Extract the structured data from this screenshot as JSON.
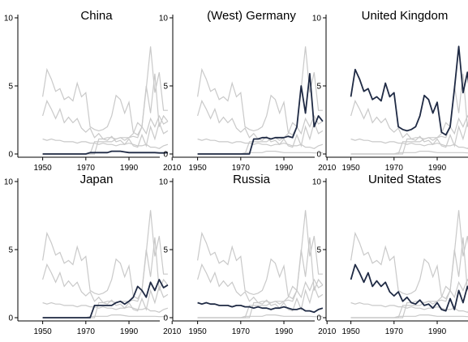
{
  "chart_data": {
    "type": "line",
    "layout": "small-multiples 3x2",
    "xlim": [
      1943,
      2013
    ],
    "ylim": [
      0,
      10
    ],
    "xticks": [
      "1950",
      "1970",
      "1990",
      "2010"
    ],
    "yticks": [
      "0",
      "5",
      "10"
    ],
    "colors": {
      "highlight": "#1f2a44",
      "background": "#c9c9c9",
      "axis": "#000000"
    },
    "grid": false,
    "legend": "none",
    "x": [
      1950,
      1952,
      1954,
      1956,
      1958,
      1960,
      1962,
      1964,
      1966,
      1968,
      1970,
      1972,
      1974,
      1976,
      1978,
      1980,
      1982,
      1984,
      1986,
      1988,
      1990,
      1992,
      1994,
      1996,
      1998,
      2000,
      2002,
      2004,
      2006,
      2008
    ],
    "panels": [
      {
        "title": "China",
        "values": [
          0,
          0,
          0,
          0,
          0,
          0,
          0,
          0,
          0,
          0,
          0,
          0.1,
          0.1,
          0.1,
          0.1,
          0.1,
          0.2,
          0.2,
          0.2,
          0.15,
          0.1,
          0.1,
          0.1,
          0.1,
          0.1,
          0.1,
          0.1,
          0.08,
          0.08,
          0.1
        ]
      },
      {
        "title": "(West) Germany",
        "values": [
          0,
          0,
          0,
          0,
          0,
          0,
          0,
          0,
          0,
          0,
          0,
          0,
          0,
          1.1,
          1.1,
          1.2,
          1.2,
          1.1,
          1.2,
          1.2,
          1.2,
          1.3,
          1.2,
          2.0,
          5.0,
          3.0,
          5.9,
          2.0,
          2.8,
          2.4
        ]
      },
      {
        "title": "United Kingdom",
        "values": [
          4.2,
          6.2,
          5.5,
          4.6,
          4.8,
          4.0,
          4.2,
          3.9,
          5.2,
          4.2,
          4.5,
          2.0,
          1.8,
          1.7,
          1.8,
          2.0,
          2.8,
          4.3,
          4.0,
          3.0,
          3.8,
          1.6,
          1.4,
          2.0,
          4.8,
          7.9,
          4.5,
          6.0,
          3.2,
          3.2
        ]
      },
      {
        "title": "Japan",
        "values": [
          0,
          0,
          0,
          0,
          0,
          0,
          0,
          0,
          0,
          0,
          0,
          0,
          0.9,
          0.9,
          0.9,
          0.9,
          0.9,
          1.1,
          1.2,
          1.0,
          1.2,
          1.5,
          2.3,
          2.0,
          1.5,
          2.6,
          2.0,
          2.8,
          2.2,
          2.4
        ]
      },
      {
        "title": "Russia",
        "values": [
          1.1,
          1.0,
          1.1,
          1.0,
          1.0,
          0.9,
          0.9,
          0.9,
          0.8,
          0.9,
          0.9,
          0.8,
          0.8,
          0.7,
          0.8,
          0.7,
          0.7,
          0.6,
          0.7,
          0.7,
          0.8,
          0.7,
          0.6,
          0.6,
          0.7,
          0.5,
          0.5,
          0.4,
          0.6,
          0.7
        ]
      },
      {
        "title": "United States",
        "values": [
          2.8,
          3.9,
          3.3,
          2.6,
          3.3,
          2.3,
          2.7,
          2.3,
          2.6,
          1.9,
          1.6,
          1.9,
          1.2,
          1.5,
          1.1,
          1.0,
          1.3,
          0.9,
          1.0,
          0.7,
          1.1,
          0.6,
          0.5,
          1.4,
          0.6,
          2.0,
          1.1,
          2.3,
          1.5,
          1.7
        ]
      }
    ]
  }
}
